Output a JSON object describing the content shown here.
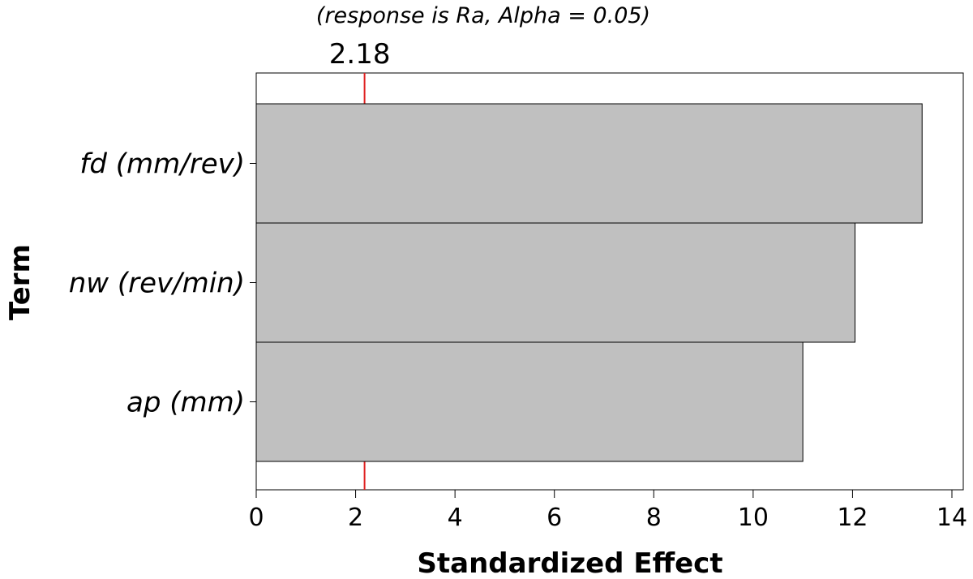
{
  "chart_data": {
    "type": "bar",
    "orientation": "horizontal",
    "subtitle": "(response is Ra, Alpha = 0.05)",
    "categories": [
      "fd (mm/rev)",
      "nw (rev/min)",
      "ap (mm)"
    ],
    "values": [
      13.4,
      12.05,
      11.0
    ],
    "xlabel": "Standardized Effect",
    "ylabel": "Term",
    "xlim": [
      0,
      14
    ],
    "xticks": [
      "0",
      "2",
      "4",
      "6",
      "8",
      "10",
      "12",
      "14"
    ],
    "reference_line": {
      "value": 2.18,
      "label": "2.18",
      "color": "#e02020"
    },
    "bar_color": "#c0c0c0",
    "grid": false
  }
}
